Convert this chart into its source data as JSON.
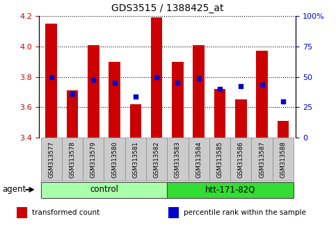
{
  "title": "GDS3515 / 1388425_at",
  "samples": [
    "GSM313577",
    "GSM313578",
    "GSM313579",
    "GSM313580",
    "GSM313581",
    "GSM313582",
    "GSM313583",
    "GSM313584",
    "GSM313585",
    "GSM313586",
    "GSM313587",
    "GSM313588"
  ],
  "red_values": [
    4.15,
    3.71,
    4.01,
    3.9,
    3.62,
    4.19,
    3.9,
    4.01,
    3.72,
    3.65,
    3.97,
    3.51
  ],
  "blue_values": [
    3.8,
    3.69,
    3.78,
    3.76,
    3.67,
    3.8,
    3.76,
    3.79,
    3.72,
    3.74,
    3.75,
    3.64
  ],
  "ylim_left": [
    3.4,
    4.2
  ],
  "ylim_right": [
    0,
    100
  ],
  "yticks_left": [
    3.4,
    3.6,
    3.8,
    4.0,
    4.2
  ],
  "yticks_right": [
    0,
    25,
    50,
    75,
    100
  ],
  "ytick_labels_right": [
    "0",
    "25",
    "50",
    "75",
    "100%"
  ],
  "bar_bottom": 3.4,
  "bar_color": "#cc0000",
  "dot_color": "#0000cc",
  "groups": [
    {
      "label": "control",
      "start": 0,
      "end": 5,
      "color": "#aaffaa"
    },
    {
      "label": "htt-171-82Q",
      "start": 6,
      "end": 11,
      "color": "#33dd33"
    }
  ],
  "agent_label": "agent",
  "legend_items": [
    {
      "color": "#cc0000",
      "label": "transformed count"
    },
    {
      "color": "#0000cc",
      "label": "percentile rank within the sample"
    }
  ],
  "grid_color": "#000000",
  "bar_color_left_axis": "#cc0000",
  "right_axis_color": "#0000cc",
  "sample_box_color": "#cccccc",
  "fig_width": 4.83,
  "fig_height": 3.54,
  "dpi": 100
}
